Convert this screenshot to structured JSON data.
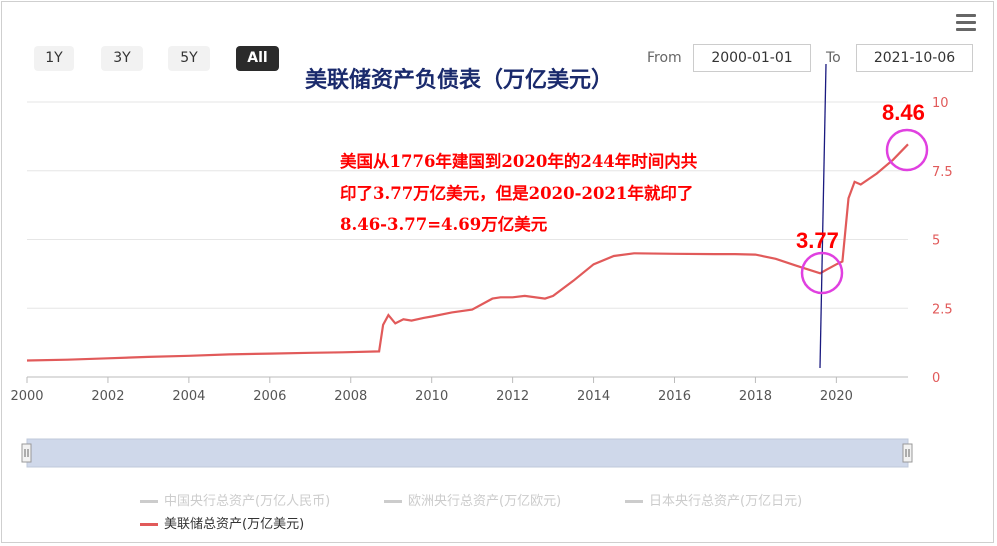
{
  "range_buttons": [
    "1Y",
    "3Y",
    "5Y",
    "All"
  ],
  "active_range": "All",
  "date_range": {
    "from_label": "From",
    "from_value": "2000-01-01",
    "to_label": "To",
    "to_value": "2021-10-06"
  },
  "title": "美联储资产负债表（万亿美元）",
  "annotation_lines": [
    "美国从1776年建国到2020年的244年时间内共",
    "印了3.77万亿美元，但是2020-2021年就印了",
    "8.46-3.77=4.69万亿美元"
  ],
  "callouts": {
    "low_value": "3.77",
    "high_value": "8.46"
  },
  "legend": [
    {
      "label": "中国央行总资产(万亿人民币)",
      "active": false
    },
    {
      "label": "欧洲央行总资产(万亿欧元)",
      "active": false
    },
    {
      "label": "日本央行总资产(万亿日元)",
      "active": false
    },
    {
      "label": "美联储总资产(万亿美元)",
      "active": true
    }
  ],
  "colors": {
    "series_line": "#e15a5a",
    "callout_circle": "#e040e0",
    "annotation_text": "#ff0000",
    "marker_line": "#1a1a80",
    "navigator_fill": "#cfd8ea"
  },
  "chart_data": {
    "type": "line",
    "title": "美联储资产负债表（万亿美元）",
    "xlim": [
      2000,
      2021.77
    ],
    "ylim": [
      0,
      10
    ],
    "x_ticks": [
      "2000",
      "2002",
      "2004",
      "2006",
      "2008",
      "2010",
      "2012",
      "2014",
      "2016",
      "2018",
      "2020"
    ],
    "y_ticks": [
      "0",
      "2.5",
      "5",
      "7.5",
      "10"
    ],
    "y_axis_position": "right",
    "grid": true,
    "series": [
      {
        "name": "美联储总资产(万亿美元)",
        "x": [
          2000.0,
          2001.0,
          2002.0,
          2003.0,
          2004.0,
          2005.0,
          2006.0,
          2007.0,
          2007.8,
          2008.7,
          2008.8,
          2008.93,
          2009.1,
          2009.3,
          2009.5,
          2009.8,
          2010.0,
          2010.5,
          2011.0,
          2011.5,
          2011.7,
          2012.0,
          2012.3,
          2012.8,
          2013.0,
          2013.5,
          2014.0,
          2014.5,
          2015.0,
          2016.0,
          2017.0,
          2017.5,
          2018.0,
          2018.5,
          2019.0,
          2019.6,
          2019.75,
          2020.0,
          2020.15,
          2020.3,
          2020.45,
          2020.6,
          2021.0,
          2021.4,
          2021.77
        ],
        "values": [
          0.6,
          0.63,
          0.68,
          0.73,
          0.77,
          0.82,
          0.85,
          0.88,
          0.9,
          0.93,
          1.9,
          2.25,
          1.95,
          2.1,
          2.05,
          2.15,
          2.2,
          2.35,
          2.45,
          2.85,
          2.9,
          2.9,
          2.95,
          2.85,
          2.95,
          3.5,
          4.1,
          4.4,
          4.5,
          4.48,
          4.47,
          4.47,
          4.45,
          4.3,
          4.05,
          3.77,
          3.9,
          4.1,
          4.2,
          6.5,
          7.1,
          7.0,
          7.4,
          7.9,
          8.46
        ]
      }
    ]
  }
}
